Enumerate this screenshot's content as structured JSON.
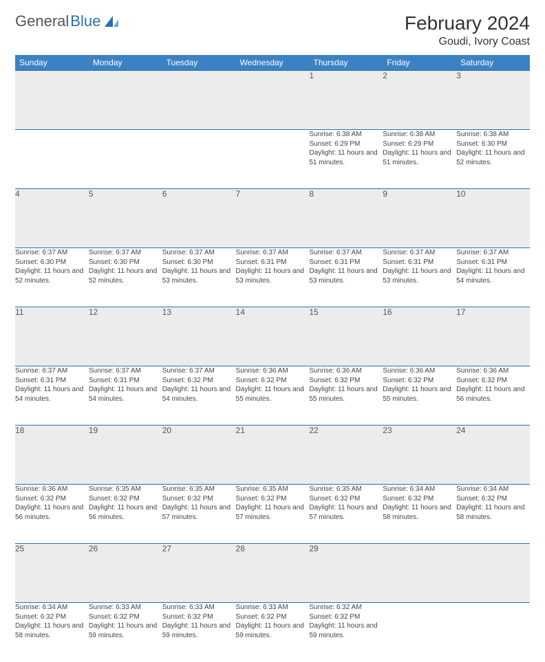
{
  "logo": {
    "text_gray": "General",
    "text_blue": "Blue"
  },
  "title": "February 2024",
  "location": "Goudi, Ivory Coast",
  "colors": {
    "header_bg": "#3b82c4",
    "header_text": "#ffffff",
    "daynum_bg": "#ececec",
    "border": "#2b6fb0",
    "logo_blue": "#2b6fb0",
    "text": "#333333"
  },
  "weekdays": [
    "Sunday",
    "Monday",
    "Tuesday",
    "Wednesday",
    "Thursday",
    "Friday",
    "Saturday"
  ],
  "weeks": [
    [
      null,
      null,
      null,
      null,
      {
        "n": "1",
        "sr": "6:38 AM",
        "ss": "6:29 PM",
        "dl": "11 hours and 51 minutes."
      },
      {
        "n": "2",
        "sr": "6:38 AM",
        "ss": "6:29 PM",
        "dl": "11 hours and 51 minutes."
      },
      {
        "n": "3",
        "sr": "6:38 AM",
        "ss": "6:30 PM",
        "dl": "11 hours and 52 minutes."
      }
    ],
    [
      {
        "n": "4",
        "sr": "6:37 AM",
        "ss": "6:30 PM",
        "dl": "11 hours and 52 minutes."
      },
      {
        "n": "5",
        "sr": "6:37 AM",
        "ss": "6:30 PM",
        "dl": "11 hours and 52 minutes."
      },
      {
        "n": "6",
        "sr": "6:37 AM",
        "ss": "6:30 PM",
        "dl": "11 hours and 53 minutes."
      },
      {
        "n": "7",
        "sr": "6:37 AM",
        "ss": "6:31 PM",
        "dl": "11 hours and 53 minutes."
      },
      {
        "n": "8",
        "sr": "6:37 AM",
        "ss": "6:31 PM",
        "dl": "11 hours and 53 minutes."
      },
      {
        "n": "9",
        "sr": "6:37 AM",
        "ss": "6:31 PM",
        "dl": "11 hours and 53 minutes."
      },
      {
        "n": "10",
        "sr": "6:37 AM",
        "ss": "6:31 PM",
        "dl": "11 hours and 54 minutes."
      }
    ],
    [
      {
        "n": "11",
        "sr": "6:37 AM",
        "ss": "6:31 PM",
        "dl": "11 hours and 54 minutes."
      },
      {
        "n": "12",
        "sr": "6:37 AM",
        "ss": "6:31 PM",
        "dl": "11 hours and 54 minutes."
      },
      {
        "n": "13",
        "sr": "6:37 AM",
        "ss": "6:32 PM",
        "dl": "11 hours and 54 minutes."
      },
      {
        "n": "14",
        "sr": "6:36 AM",
        "ss": "6:32 PM",
        "dl": "11 hours and 55 minutes."
      },
      {
        "n": "15",
        "sr": "6:36 AM",
        "ss": "6:32 PM",
        "dl": "11 hours and 55 minutes."
      },
      {
        "n": "16",
        "sr": "6:36 AM",
        "ss": "6:32 PM",
        "dl": "11 hours and 55 minutes."
      },
      {
        "n": "17",
        "sr": "6:36 AM",
        "ss": "6:32 PM",
        "dl": "11 hours and 56 minutes."
      }
    ],
    [
      {
        "n": "18",
        "sr": "6:36 AM",
        "ss": "6:32 PM",
        "dl": "11 hours and 56 minutes."
      },
      {
        "n": "19",
        "sr": "6:35 AM",
        "ss": "6:32 PM",
        "dl": "11 hours and 56 minutes."
      },
      {
        "n": "20",
        "sr": "6:35 AM",
        "ss": "6:32 PM",
        "dl": "11 hours and 57 minutes."
      },
      {
        "n": "21",
        "sr": "6:35 AM",
        "ss": "6:32 PM",
        "dl": "11 hours and 57 minutes."
      },
      {
        "n": "22",
        "sr": "6:35 AM",
        "ss": "6:32 PM",
        "dl": "11 hours and 57 minutes."
      },
      {
        "n": "23",
        "sr": "6:34 AM",
        "ss": "6:32 PM",
        "dl": "11 hours and 58 minutes."
      },
      {
        "n": "24",
        "sr": "6:34 AM",
        "ss": "6:32 PM",
        "dl": "11 hours and 58 minutes."
      }
    ],
    [
      {
        "n": "25",
        "sr": "6:34 AM",
        "ss": "6:32 PM",
        "dl": "11 hours and 58 minutes."
      },
      {
        "n": "26",
        "sr": "6:33 AM",
        "ss": "6:32 PM",
        "dl": "11 hours and 59 minutes."
      },
      {
        "n": "27",
        "sr": "6:33 AM",
        "ss": "6:32 PM",
        "dl": "11 hours and 59 minutes."
      },
      {
        "n": "28",
        "sr": "6:33 AM",
        "ss": "6:32 PM",
        "dl": "11 hours and 59 minutes."
      },
      {
        "n": "29",
        "sr": "6:32 AM",
        "ss": "6:32 PM",
        "dl": "11 hours and 59 minutes."
      },
      null,
      null
    ]
  ],
  "labels": {
    "sunrise": "Sunrise:",
    "sunset": "Sunset:",
    "daylight": "Daylight:"
  }
}
